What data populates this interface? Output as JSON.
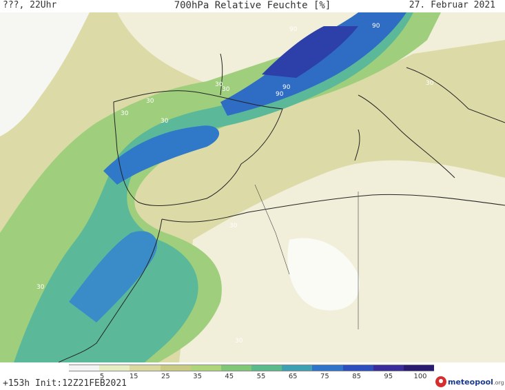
{
  "header": {
    "left": "???, 22Uhr",
    "center": "700hPa Relative Feuchte [%]",
    "right": "27. Februar 2021"
  },
  "map": {
    "contour_labels": [
      "90",
      "90",
      "90",
      "90",
      "30",
      "30",
      "30",
      "30",
      "30",
      "30",
      "30",
      "30",
      "30"
    ]
  },
  "colorbar": {
    "ticks": [
      "5",
      "15",
      "25",
      "35",
      "45",
      "55",
      "65",
      "75",
      "85",
      "95",
      "100"
    ],
    "colors": [
      "#f4f4f4",
      "#e8eec4",
      "#dcd9a0",
      "#c9ca84",
      "#aed47c",
      "#80c878",
      "#5aba8c",
      "#3fa0b4",
      "#2f74c8",
      "#2d4fbe",
      "#3a2d9a",
      "#2a1a70"
    ]
  },
  "footer": {
    "left": "+153h Init:12Z21FEB2021",
    "logo": "meteopool",
    "logo_suffix": ".org"
  }
}
